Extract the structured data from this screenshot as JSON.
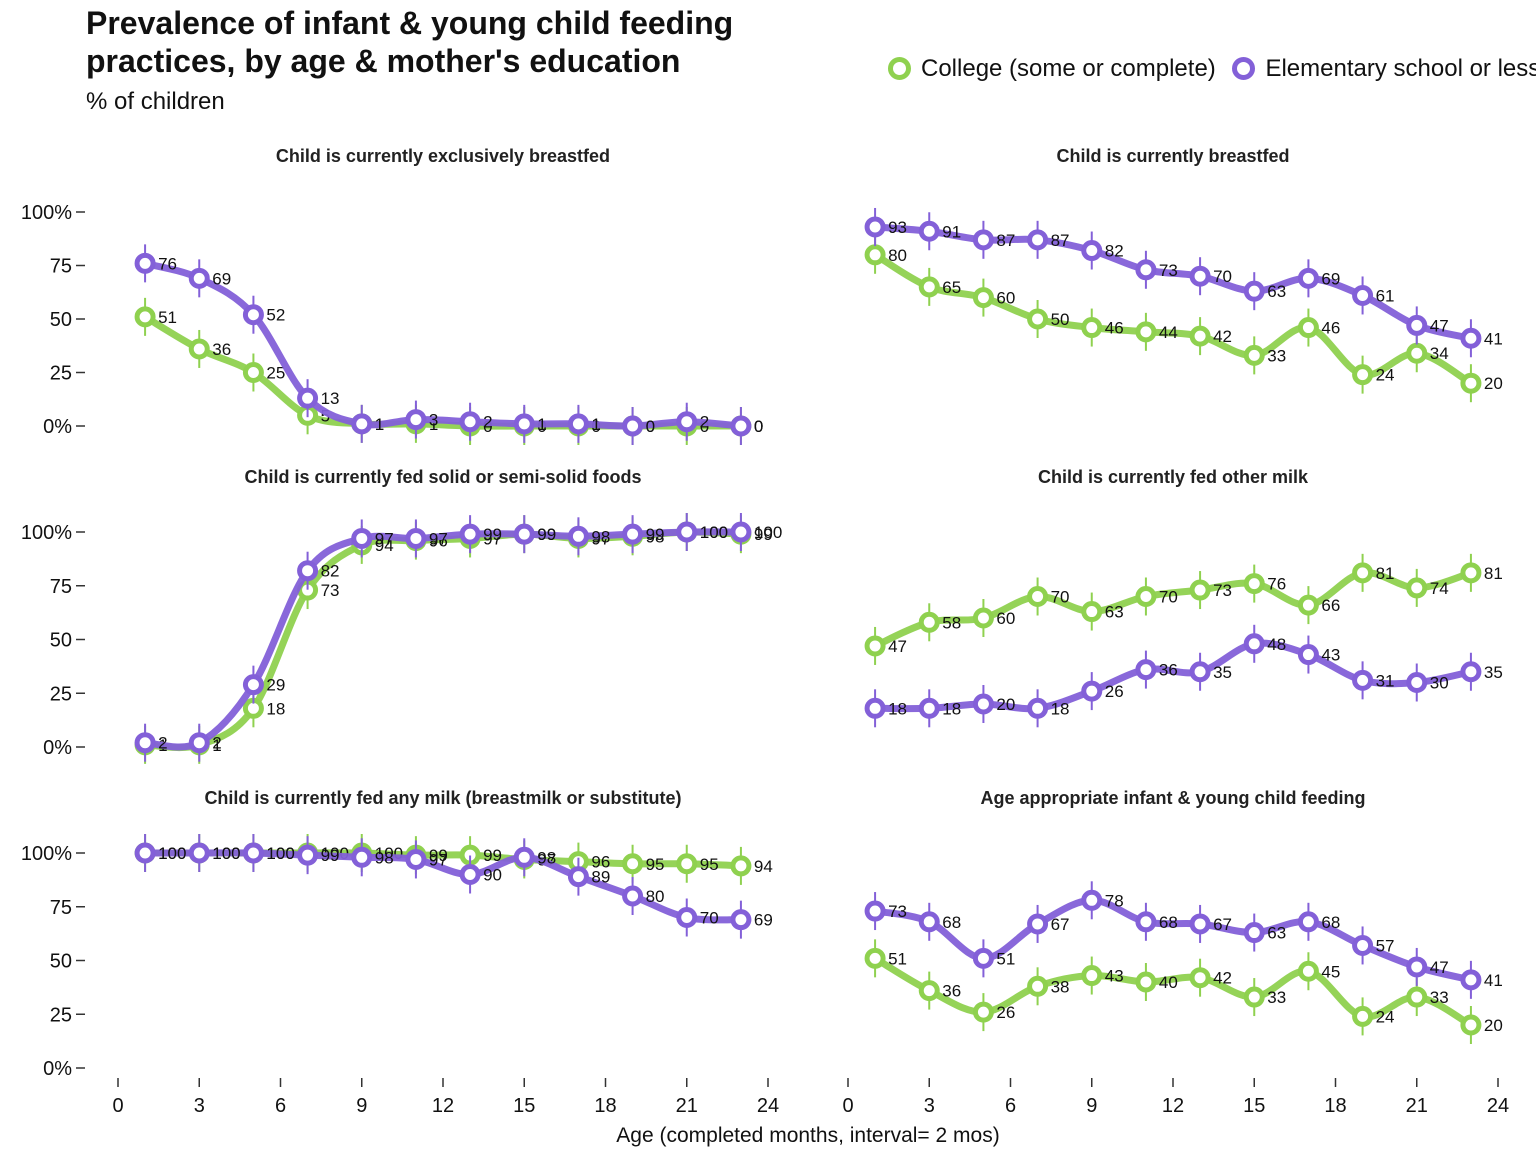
{
  "title": "Prevalence of infant & young child feeding practices, by age & mother's education",
  "subtitle": "% of children",
  "colors": {
    "college": "#8fd14f",
    "elementary": "#8360d8"
  },
  "chart_data": {
    "type": "line",
    "xlabel": "Age (completed months, interval= 2 mos)",
    "ylabel": "",
    "xlim": [
      0,
      24
    ],
    "ylim": [
      0,
      100
    ],
    "xticks": [
      "0",
      "3",
      "6",
      "9",
      "12",
      "15",
      "18",
      "21",
      "24"
    ],
    "yticks": [
      "0%",
      "25",
      "50",
      "75",
      "100%"
    ],
    "legend": {
      "placement": "top-right",
      "entries": [
        "College (some or complete)",
        "Elementary school or less"
      ]
    },
    "x": [
      1,
      3,
      5,
      7,
      9,
      11,
      13,
      15,
      17,
      19,
      21,
      23
    ],
    "panels": [
      {
        "title": "Child is currently exclusively breastfed",
        "series": [
          {
            "name": "College (some or complete)",
            "values": [
              51,
              36,
              25,
              5,
              1,
              1,
              0,
              0,
              0,
              0,
              0,
              0
            ]
          },
          {
            "name": "Elementary school or less",
            "values": [
              76,
              69,
              52,
              13,
              1,
              3,
              2,
              1,
              1,
              0,
              2,
              0
            ]
          }
        ]
      },
      {
        "title": "Child is currently breastfed",
        "series": [
          {
            "name": "College (some or complete)",
            "values": [
              80,
              65,
              60,
              50,
              46,
              44,
              42,
              33,
              46,
              24,
              34,
              20
            ]
          },
          {
            "name": "Elementary school or less",
            "values": [
              93,
              91,
              87,
              87,
              82,
              73,
              70,
              63,
              69,
              61,
              47,
              41
            ]
          }
        ]
      },
      {
        "title": "Child is currently fed solid or semi-solid foods",
        "series": [
          {
            "name": "College (some or complete)",
            "values": [
              1,
              1,
              18,
              73,
              94,
              96,
              97,
              99,
              97,
              98,
              100,
              99
            ]
          },
          {
            "name": "Elementary school or less",
            "values": [
              2,
              2,
              29,
              82,
              97,
              97,
              99,
              99,
              98,
              99,
              100,
              100
            ]
          }
        ]
      },
      {
        "title": "Child is currently fed other milk",
        "series": [
          {
            "name": "College (some or complete)",
            "values": [
              47,
              58,
              60,
              70,
              63,
              70,
              73,
              76,
              66,
              81,
              74,
              81
            ]
          },
          {
            "name": "Elementary school or less",
            "values": [
              18,
              18,
              20,
              18,
              26,
              36,
              35,
              48,
              43,
              31,
              30,
              35
            ]
          }
        ]
      },
      {
        "title": "Child is currently fed any milk (breastmilk or substitute)",
        "series": [
          {
            "name": "College (some or complete)",
            "values": [
              100,
              100,
              100,
              100,
              100,
              99,
              99,
              97,
              96,
              95,
              95,
              94
            ]
          },
          {
            "name": "Elementary school or less",
            "values": [
              100,
              100,
              100,
              99,
              98,
              97,
              90,
              98,
              89,
              80,
              70,
              69
            ]
          }
        ]
      },
      {
        "title": "Age appropriate infant & young child feeding",
        "series": [
          {
            "name": "College (some or complete)",
            "values": [
              51,
              36,
              26,
              38,
              43,
              40,
              42,
              33,
              45,
              24,
              33,
              20
            ]
          },
          {
            "name": "Elementary school or less",
            "values": [
              73,
              68,
              51,
              67,
              78,
              68,
              67,
              63,
              68,
              57,
              47,
              41
            ]
          }
        ]
      }
    ]
  }
}
